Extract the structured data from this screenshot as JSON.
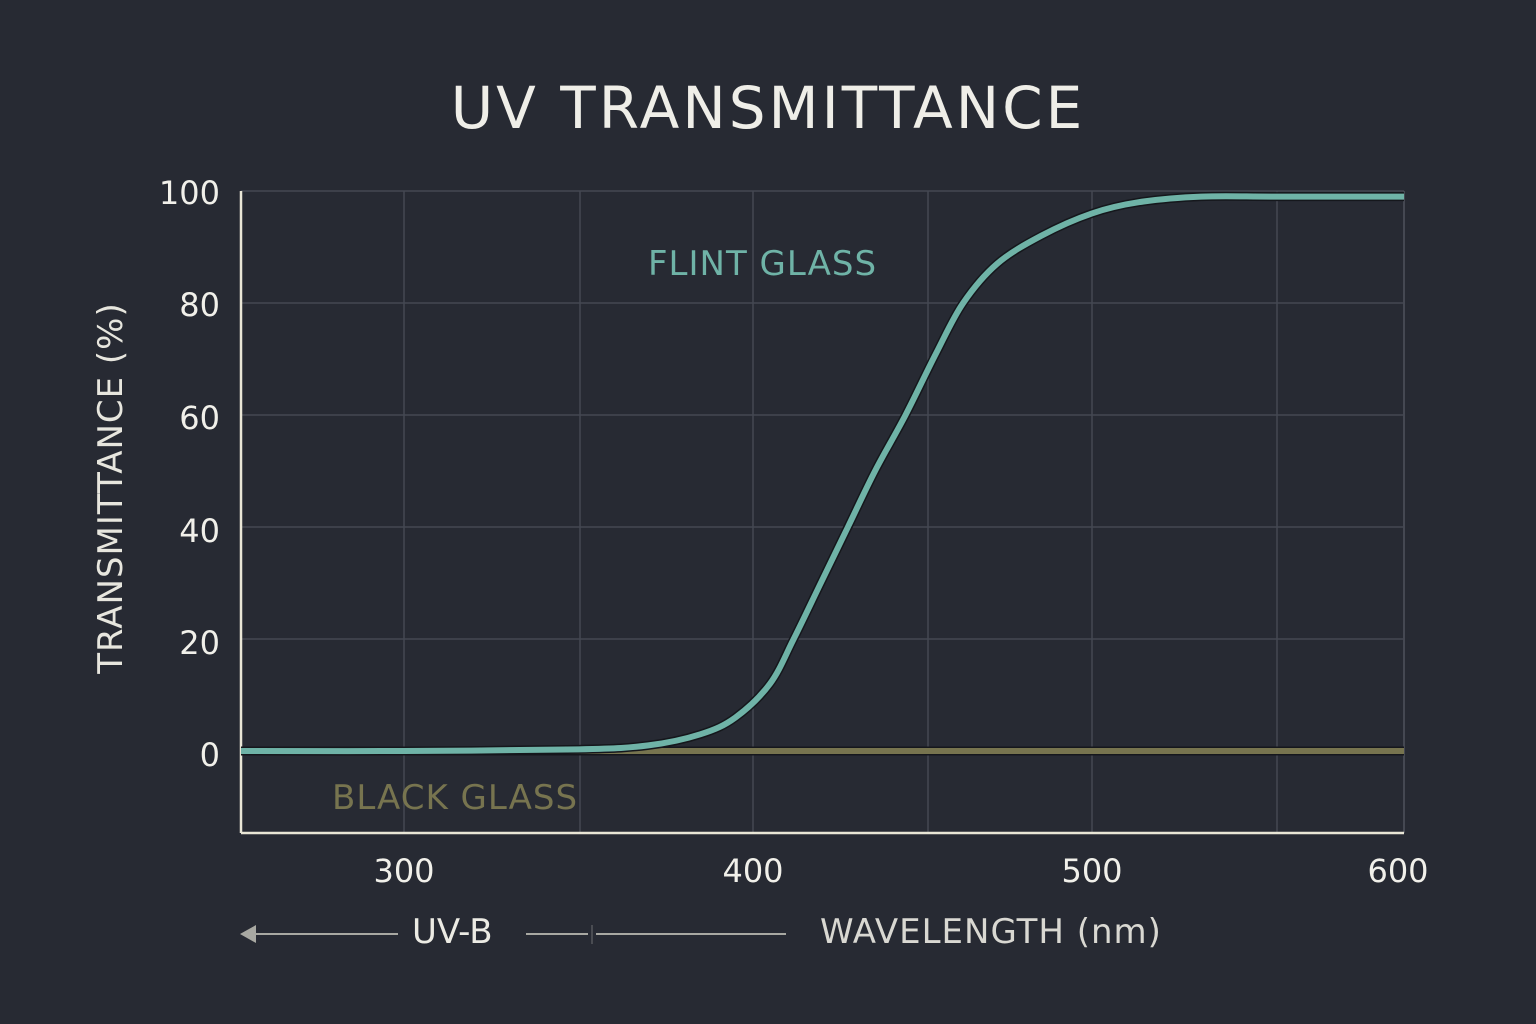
{
  "title": "UV TRANSMITTANCE",
  "axes": {
    "ylabel": "TRANSMITTANCE (%)",
    "xlabel": "WAVELENGTH (nm)",
    "yticks": [
      "100",
      "80",
      "60",
      "40",
      "20",
      "0"
    ],
    "xticks": [
      "300",
      "400",
      "500",
      "600"
    ]
  },
  "annotations": {
    "flint_label": "FLINT GLASS",
    "black_label": "BLACK GLASS",
    "band_label": "UV-B"
  },
  "colors": {
    "background": "#272a33",
    "grid": "#454852",
    "axis": "#e9e6d6",
    "flint": "#6fb3a7",
    "black": "#77744f",
    "text": "#ecebe4"
  },
  "chart_data": {
    "type": "line",
    "title": "UV TRANSMITTANCE",
    "xlabel": "WAVELENGTH (nm)",
    "ylabel": "TRANSMITTANCE (%)",
    "xlim": [
      253,
      600
    ],
    "ylim": [
      -15,
      100
    ],
    "xticks": [
      300,
      400,
      500,
      600
    ],
    "yticks": [
      0,
      20,
      40,
      60,
      80,
      100
    ],
    "grid": true,
    "legend": "inline labels",
    "annotations": [
      "UV-B (arrow pointing to shorter wavelengths)",
      "FLINT GLASS",
      "BLACK GLASS"
    ],
    "series": [
      {
        "name": "FLINT GLASS",
        "x": [
          253,
          300,
          350,
          370,
          385,
          395,
          405,
          412,
          420,
          428,
          436,
          445,
          454,
          462,
          472,
          485,
          500,
          515,
          535,
          560,
          600
        ],
        "y": [
          0,
          0,
          0.3,
          1,
          3,
          6,
          12,
          20,
          30,
          40,
          50,
          60,
          71,
          80,
          87,
          92,
          96,
          98,
          99,
          99,
          99
        ]
      },
      {
        "name": "BLACK GLASS",
        "x": [
          253,
          300,
          400,
          500,
          600
        ],
        "y": [
          0,
          0,
          0,
          0,
          0
        ]
      }
    ]
  }
}
